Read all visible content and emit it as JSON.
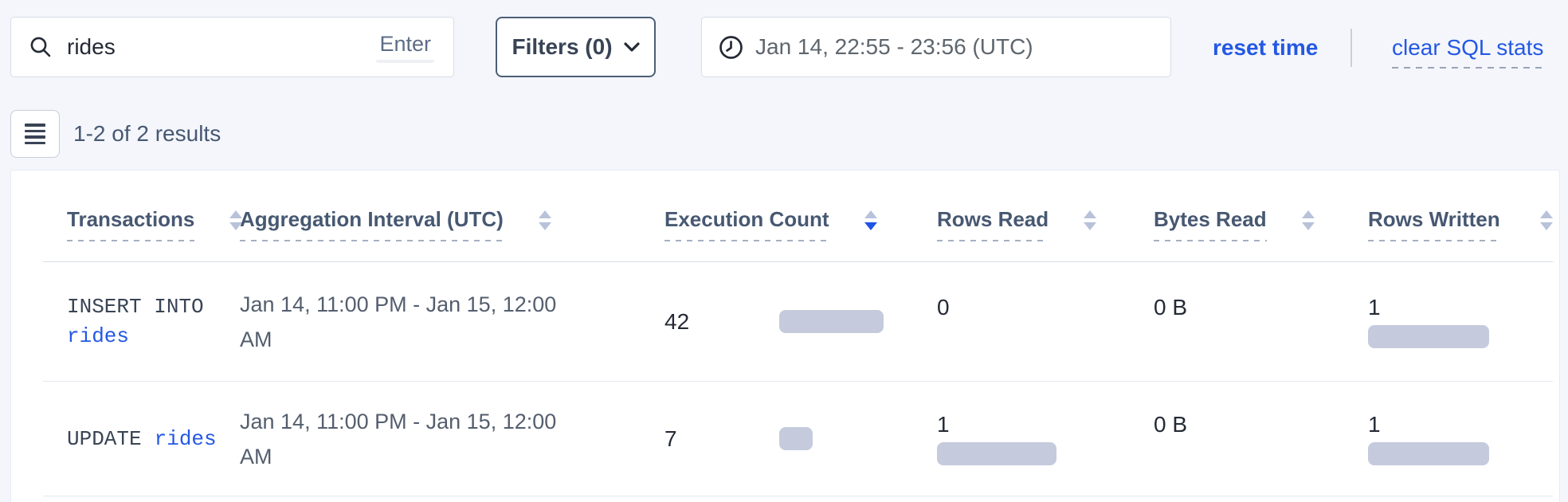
{
  "toolbar": {
    "search": {
      "value": "rides",
      "hint": "Enter"
    },
    "filters_label": "Filters (0)",
    "time_range": "Jan 14, 22:55 - 23:56 (UTC)",
    "reset_time_label": "reset time",
    "clear_sql_label": "clear SQL stats"
  },
  "results": {
    "summary": "1-2 of 2 results"
  },
  "table": {
    "columns": [
      {
        "label": "Transactions",
        "sort": "none"
      },
      {
        "label": "Aggregation Interval (UTC)",
        "sort": "none"
      },
      {
        "label": "Execution Count",
        "sort": "desc"
      },
      {
        "label": "Rows Read",
        "sort": "none"
      },
      {
        "label": "Bytes Read",
        "sort": "none"
      },
      {
        "label": "Rows Written",
        "sort": "none"
      }
    ],
    "rows": [
      {
        "transaction": {
          "keyword": "INSERT INTO",
          "table": "rides"
        },
        "interval_lines": [
          "Jan 14, 11:00 PM - Jan 15, 12:00",
          "AM"
        ],
        "execution_count": {
          "value": "42",
          "bar": 131
        },
        "rows_read": {
          "value": "0",
          "bar": 0
        },
        "bytes_read": {
          "value": "0 B",
          "bar": 0
        },
        "rows_written": {
          "value": "1",
          "bar": 152
        }
      },
      {
        "transaction": {
          "keyword": "UPDATE",
          "table": "rides"
        },
        "interval_lines": [
          "Jan 14, 11:00 PM - Jan 15, 12:00",
          "AM"
        ],
        "execution_count": {
          "value": "7",
          "bar": 42
        },
        "rows_read": {
          "value": "1",
          "bar": 150
        },
        "bytes_read": {
          "value": "0 B",
          "bar": 0
        },
        "rows_written": {
          "value": "1",
          "bar": 152
        }
      }
    ]
  },
  "colors": {
    "accent_blue": "#2458e4",
    "bar_fill": "#c5cbdd",
    "header_text": "#475872",
    "page_background": "#f4f6fb"
  }
}
